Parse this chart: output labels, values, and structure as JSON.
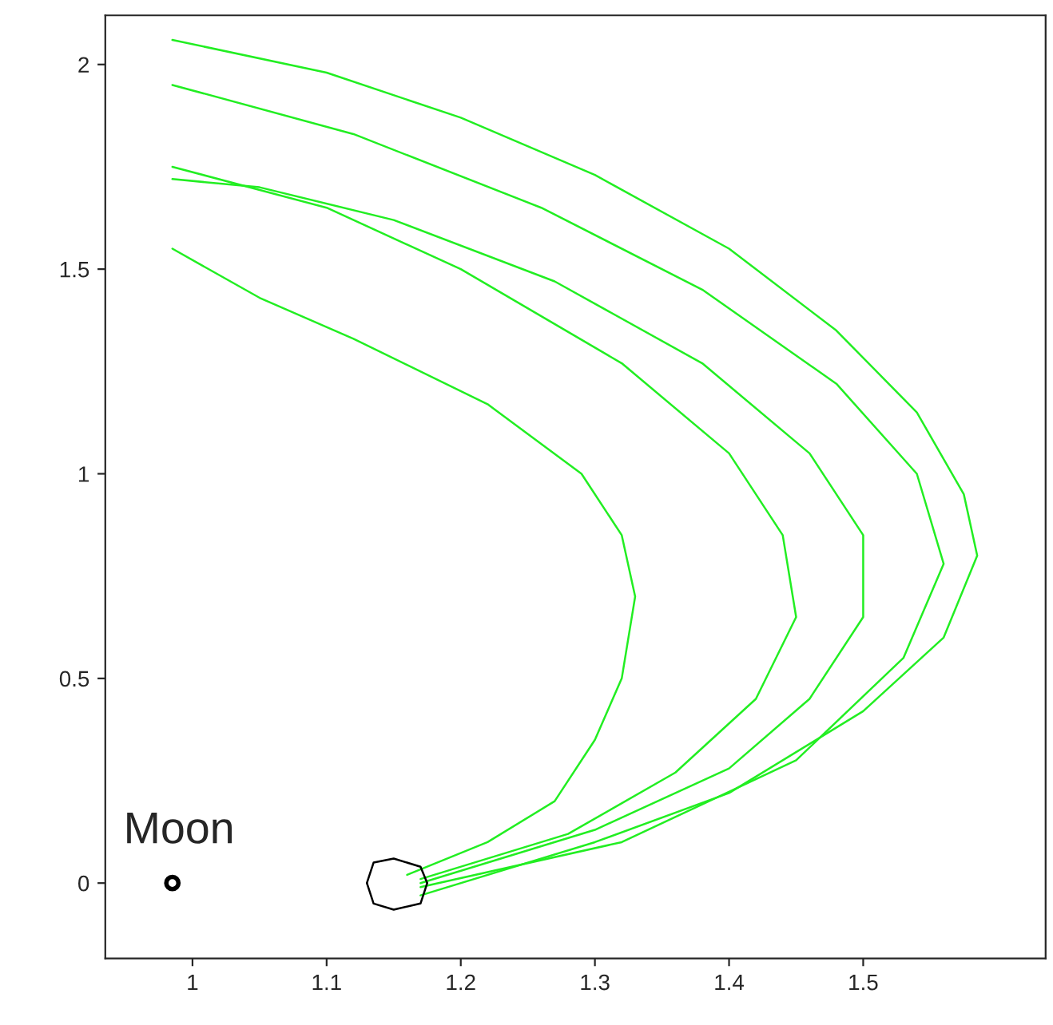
{
  "chart_data": {
    "type": "line",
    "xlim": [
      0.935,
      1.636
    ],
    "ylim": [
      -0.184,
      2.12
    ],
    "xticks": [
      1,
      1.1,
      1.2,
      1.3,
      1.4,
      1.5
    ],
    "yticks": [
      0,
      0.5,
      1,
      1.5,
      2
    ],
    "grid": false,
    "marker": "none",
    "line_style": "solid",
    "series": [
      {
        "color": "#22ee22",
        "x": [
          1.17,
          1.3,
          1.4,
          1.5,
          1.56,
          1.585,
          1.575,
          1.54,
          1.48,
          1.4,
          1.3,
          1.2,
          1.1,
          0.985
        ],
        "values": [
          -0.03,
          0.1,
          0.22,
          0.42,
          0.6,
          0.8,
          0.95,
          1.15,
          1.35,
          1.55,
          1.73,
          1.87,
          1.98,
          2.06
        ]
      },
      {
        "color": "#22ee22",
        "x": [
          1.17,
          1.32,
          1.45,
          1.53,
          1.56,
          1.54,
          1.48,
          1.38,
          1.26,
          1.12,
          0.985
        ],
        "values": [
          -0.01,
          0.1,
          0.3,
          0.55,
          0.78,
          1.0,
          1.22,
          1.45,
          1.65,
          1.83,
          1.95
        ]
      },
      {
        "color": "#22ee22",
        "x": [
          1.17,
          1.3,
          1.4,
          1.46,
          1.5,
          1.5,
          1.46,
          1.38,
          1.27,
          1.15,
          1.05,
          0.985
        ],
        "values": [
          0.0,
          0.13,
          0.28,
          0.45,
          0.65,
          0.85,
          1.05,
          1.27,
          1.47,
          1.62,
          1.7,
          1.72
        ]
      },
      {
        "color": "#22ee22",
        "x": [
          1.17,
          1.28,
          1.36,
          1.42,
          1.45,
          1.44,
          1.4,
          1.32,
          1.2,
          1.1,
          0.985
        ],
        "values": [
          0.01,
          0.12,
          0.27,
          0.45,
          0.65,
          0.85,
          1.05,
          1.27,
          1.5,
          1.65,
          1.75
        ]
      },
      {
        "color": "#22ee22",
        "x": [
          1.16,
          1.22,
          1.27,
          1.3,
          1.32,
          1.33,
          1.32,
          1.29,
          1.22,
          1.12,
          1.05,
          0.985
        ],
        "values": [
          0.02,
          0.1,
          0.2,
          0.35,
          0.5,
          0.7,
          0.85,
          1.0,
          1.17,
          1.33,
          1.43,
          1.55
        ]
      },
      {
        "color": "#000000",
        "x": [
          1.13,
          1.135,
          1.15,
          1.17,
          1.175
        ],
        "values": [
          0.0,
          -0.05,
          -0.065,
          -0.05,
          0.0
        ]
      },
      {
        "color": "#000000",
        "x": [
          1.13,
          1.135,
          1.15,
          1.17,
          1.175
        ],
        "values": [
          0.0,
          0.05,
          0.06,
          0.04,
          0.0
        ]
      },
      {
        "type": "scatter",
        "color": "#000000",
        "marker": "circle",
        "x": [
          0.985
        ],
        "values": [
          0.0
        ]
      }
    ],
    "annotations": [
      {
        "text": "Moon",
        "x": 0.985,
        "y": 0.0
      }
    ]
  }
}
